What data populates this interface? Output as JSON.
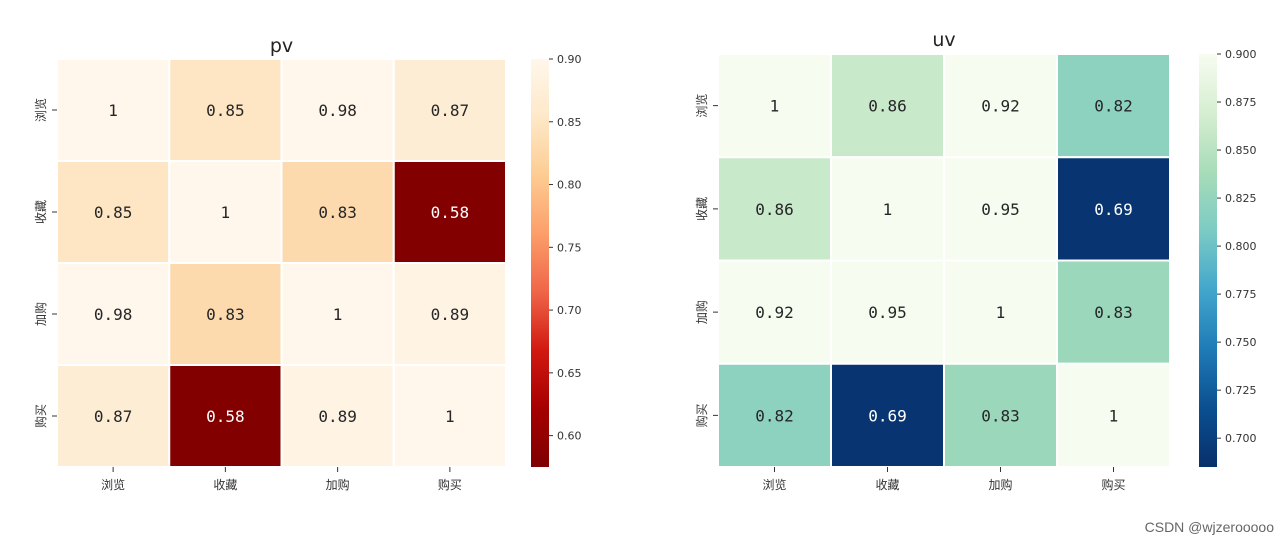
{
  "chart_data": [
    {
      "type": "heatmap",
      "title": "pv",
      "row_labels": [
        "浏览",
        "收藏",
        "加购",
        "购买"
      ],
      "col_labels": [
        "浏览",
        "收藏",
        "加购",
        "购买"
      ],
      "values": [
        [
          1,
          0.85,
          0.98,
          0.87
        ],
        [
          0.85,
          1,
          0.83,
          0.58
        ],
        [
          0.98,
          0.83,
          1,
          0.89
        ],
        [
          0.87,
          0.58,
          0.89,
          1
        ]
      ],
      "annotations": [
        [
          "1",
          "0.85",
          "0.98",
          "0.87"
        ],
        [
          "0.85",
          "1",
          "0.83",
          "0.58"
        ],
        [
          "0.98",
          "0.83",
          "1",
          "0.89"
        ],
        [
          "0.87",
          "0.58",
          "0.89",
          "1"
        ]
      ],
      "colormap": "OrRd",
      "vmin": 0.575,
      "vmax": 0.9,
      "colorbar_ticks": [
        0.6,
        0.65,
        0.7,
        0.75,
        0.8,
        0.85,
        0.9
      ],
      "colorbar_tick_labels": [
        "0.60",
        "0.65",
        "0.70",
        "0.75",
        "0.80",
        "0.85",
        "0.90"
      ],
      "color_stops": [
        "#7f0000",
        "#a50000",
        "#d11910",
        "#ef6548",
        "#fc9e6a",
        "#fdcc92",
        "#fee8c8",
        "#fff7ec"
      ]
    },
    {
      "type": "heatmap",
      "title": "uv",
      "row_labels": [
        "浏览",
        "收藏",
        "加购",
        "购买"
      ],
      "col_labels": [
        "浏览",
        "收藏",
        "加购",
        "购买"
      ],
      "values": [
        [
          1,
          0.86,
          0.92,
          0.82
        ],
        [
          0.86,
          1,
          0.95,
          0.69
        ],
        [
          0.92,
          0.95,
          1,
          0.83
        ],
        [
          0.82,
          0.69,
          0.83,
          1
        ]
      ],
      "annotations": [
        [
          "1",
          "0.86",
          "0.92",
          "0.82"
        ],
        [
          "0.86",
          "1",
          "0.95",
          "0.69"
        ],
        [
          "0.92",
          "0.95",
          "1",
          "0.83"
        ],
        [
          "0.82",
          "0.69",
          "0.83",
          "1"
        ]
      ],
      "colormap": "GnBu",
      "vmin": 0.685,
      "vmax": 0.9,
      "colorbar_ticks": [
        0.7,
        0.725,
        0.75,
        0.775,
        0.8,
        0.825,
        0.85,
        0.875,
        0.9
      ],
      "colorbar_tick_labels": [
        "0.700",
        "0.725",
        "0.750",
        "0.775",
        "0.800",
        "0.825",
        "0.850",
        "0.875",
        "0.900"
      ],
      "color_stops": [
        "#08306b",
        "#0b4f91",
        "#1f7bb6",
        "#42a6cc",
        "#7bcbc4",
        "#a8dcb8",
        "#d6eed2",
        "#f7fcf0"
      ]
    }
  ],
  "watermark": "CSDN @wjzerooooo"
}
